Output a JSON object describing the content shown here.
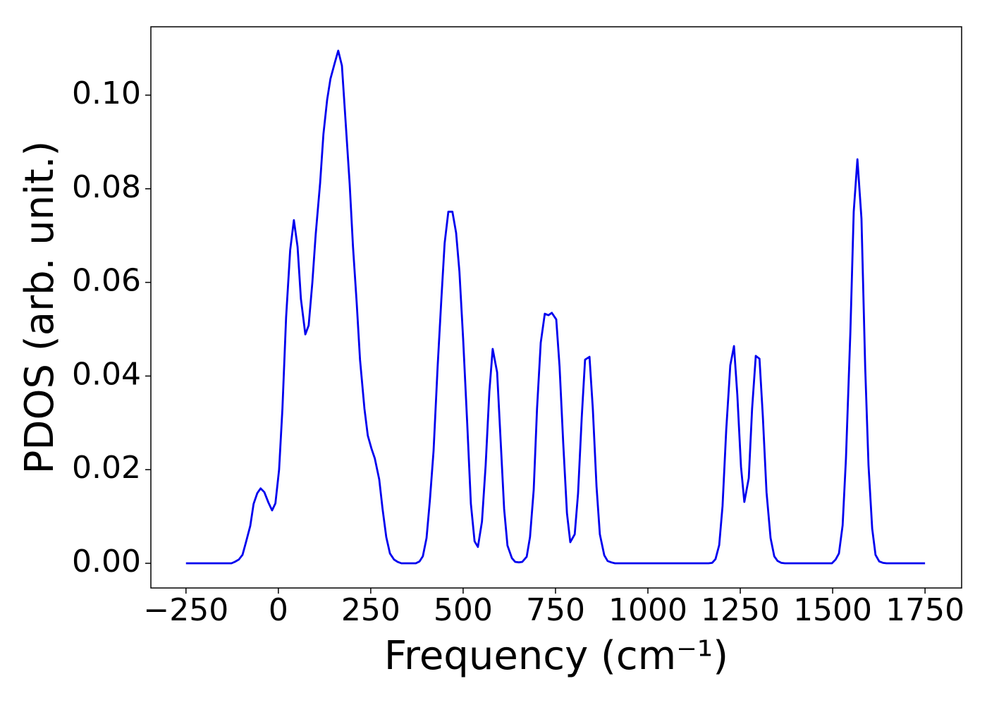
{
  "chart_data": {
    "type": "line",
    "x_label": "Frequency (cm⁻¹)",
    "y_label": "PDOS (arb. unit.)",
    "color": "#0000ee",
    "xlim": [
      -345,
      1849
    ],
    "ylim": [
      -0.00527,
      0.1146
    ],
    "xticks": [
      {
        "value": -250,
        "label": "−250"
      },
      0,
      250,
      500,
      750,
      1000,
      1250,
      1500,
      1750
    ],
    "yticks": [
      {
        "value": 0,
        "label": "0.00"
      },
      {
        "value": 0.02,
        "label": "0.02"
      },
      {
        "value": 0.04,
        "label": "0.04"
      },
      {
        "value": 0.06,
        "label": "0.06"
      },
      {
        "value": 0.08,
        "label": "0.08"
      },
      {
        "value": 0.1,
        "label": "0.10"
      }
    ],
    "x": [
      -250,
      -127,
      -118,
      -107,
      -97,
      -88,
      -76,
      -67,
      -57,
      -48,
      -38,
      -27,
      -17,
      -8,
      2,
      11,
      21,
      32,
      42,
      52,
      61,
      73,
      82,
      92,
      101,
      113,
      122,
      132,
      141,
      153,
      162,
      172,
      181,
      193,
      202,
      212,
      221,
      233,
      242,
      252,
      261,
      273,
      282,
      292,
      302,
      313,
      323,
      333,
      372,
      382,
      391,
      401,
      410,
      420,
      431,
      441,
      450,
      460,
      471,
      481,
      490,
      500,
      511,
      521,
      531,
      540,
      551,
      561,
      571,
      580,
      592,
      601,
      611,
      620,
      632,
      641,
      651,
      660,
      672,
      681,
      691,
      700,
      710,
      721,
      731,
      740,
      752,
      761,
      771,
      781,
      790,
      802,
      811,
      821,
      830,
      842,
      851,
      861,
      870,
      882,
      891,
      901,
      911,
      1164,
      1174,
      1183,
      1193,
      1202,
      1212,
      1223,
      1233,
      1242,
      1252,
      1261,
      1273,
      1282,
      1292,
      1302,
      1311,
      1321,
      1332,
      1342,
      1351,
      1361,
      1371,
      1498,
      1508,
      1517,
      1527,
      1536,
      1548,
      1557,
      1567,
      1578,
      1588,
      1597,
      1607,
      1616,
      1626,
      1636,
      1646,
      1750
    ],
    "values": [
      0,
      0,
      0.0003,
      0.0008,
      0.0018,
      0.0044,
      0.008,
      0.0127,
      0.015,
      0.016,
      0.0152,
      0.013,
      0.0113,
      0.0128,
      0.02,
      0.033,
      0.0526,
      0.0669,
      0.0733,
      0.0676,
      0.0565,
      0.0489,
      0.0508,
      0.06,
      0.0702,
      0.0812,
      0.0917,
      0.099,
      0.1035,
      0.107,
      0.1095,
      0.1063,
      0.0955,
      0.081,
      0.0676,
      0.0556,
      0.0435,
      0.033,
      0.0273,
      0.0245,
      0.0224,
      0.0179,
      0.0116,
      0.0056,
      0.0021,
      0.0008,
      0.0003,
      0,
      0,
      0.0004,
      0.0015,
      0.0054,
      0.0134,
      0.024,
      0.042,
      0.0563,
      0.0684,
      0.0751,
      0.0751,
      0.0706,
      0.0623,
      0.048,
      0.03,
      0.0127,
      0.0047,
      0.0035,
      0.0089,
      0.021,
      0.0367,
      0.0458,
      0.0408,
      0.027,
      0.0116,
      0.0038,
      0.0011,
      0.0003,
      0.0002,
      0.0003,
      0.0014,
      0.0056,
      0.0157,
      0.033,
      0.0471,
      0.0533,
      0.053,
      0.0535,
      0.0521,
      0.042,
      0.0255,
      0.0107,
      0.0045,
      0.0062,
      0.0149,
      0.0312,
      0.0435,
      0.0441,
      0.033,
      0.0164,
      0.0062,
      0.0017,
      0.0005,
      0.0002,
      0,
      0,
      0.0001,
      0.0009,
      0.0039,
      0.0122,
      0.0285,
      0.0423,
      0.0464,
      0.036,
      0.0206,
      0.0131,
      0.0182,
      0.033,
      0.0443,
      0.0437,
      0.0315,
      0.0152,
      0.0054,
      0.0015,
      0.0005,
      0.0001,
      0,
      0,
      0.0008,
      0.0021,
      0.0081,
      0.0224,
      0.0495,
      0.0751,
      0.0863,
      0.0736,
      0.042,
      0.021,
      0.0074,
      0.0018,
      0.0004,
      0.0001,
      0,
      0
    ]
  }
}
